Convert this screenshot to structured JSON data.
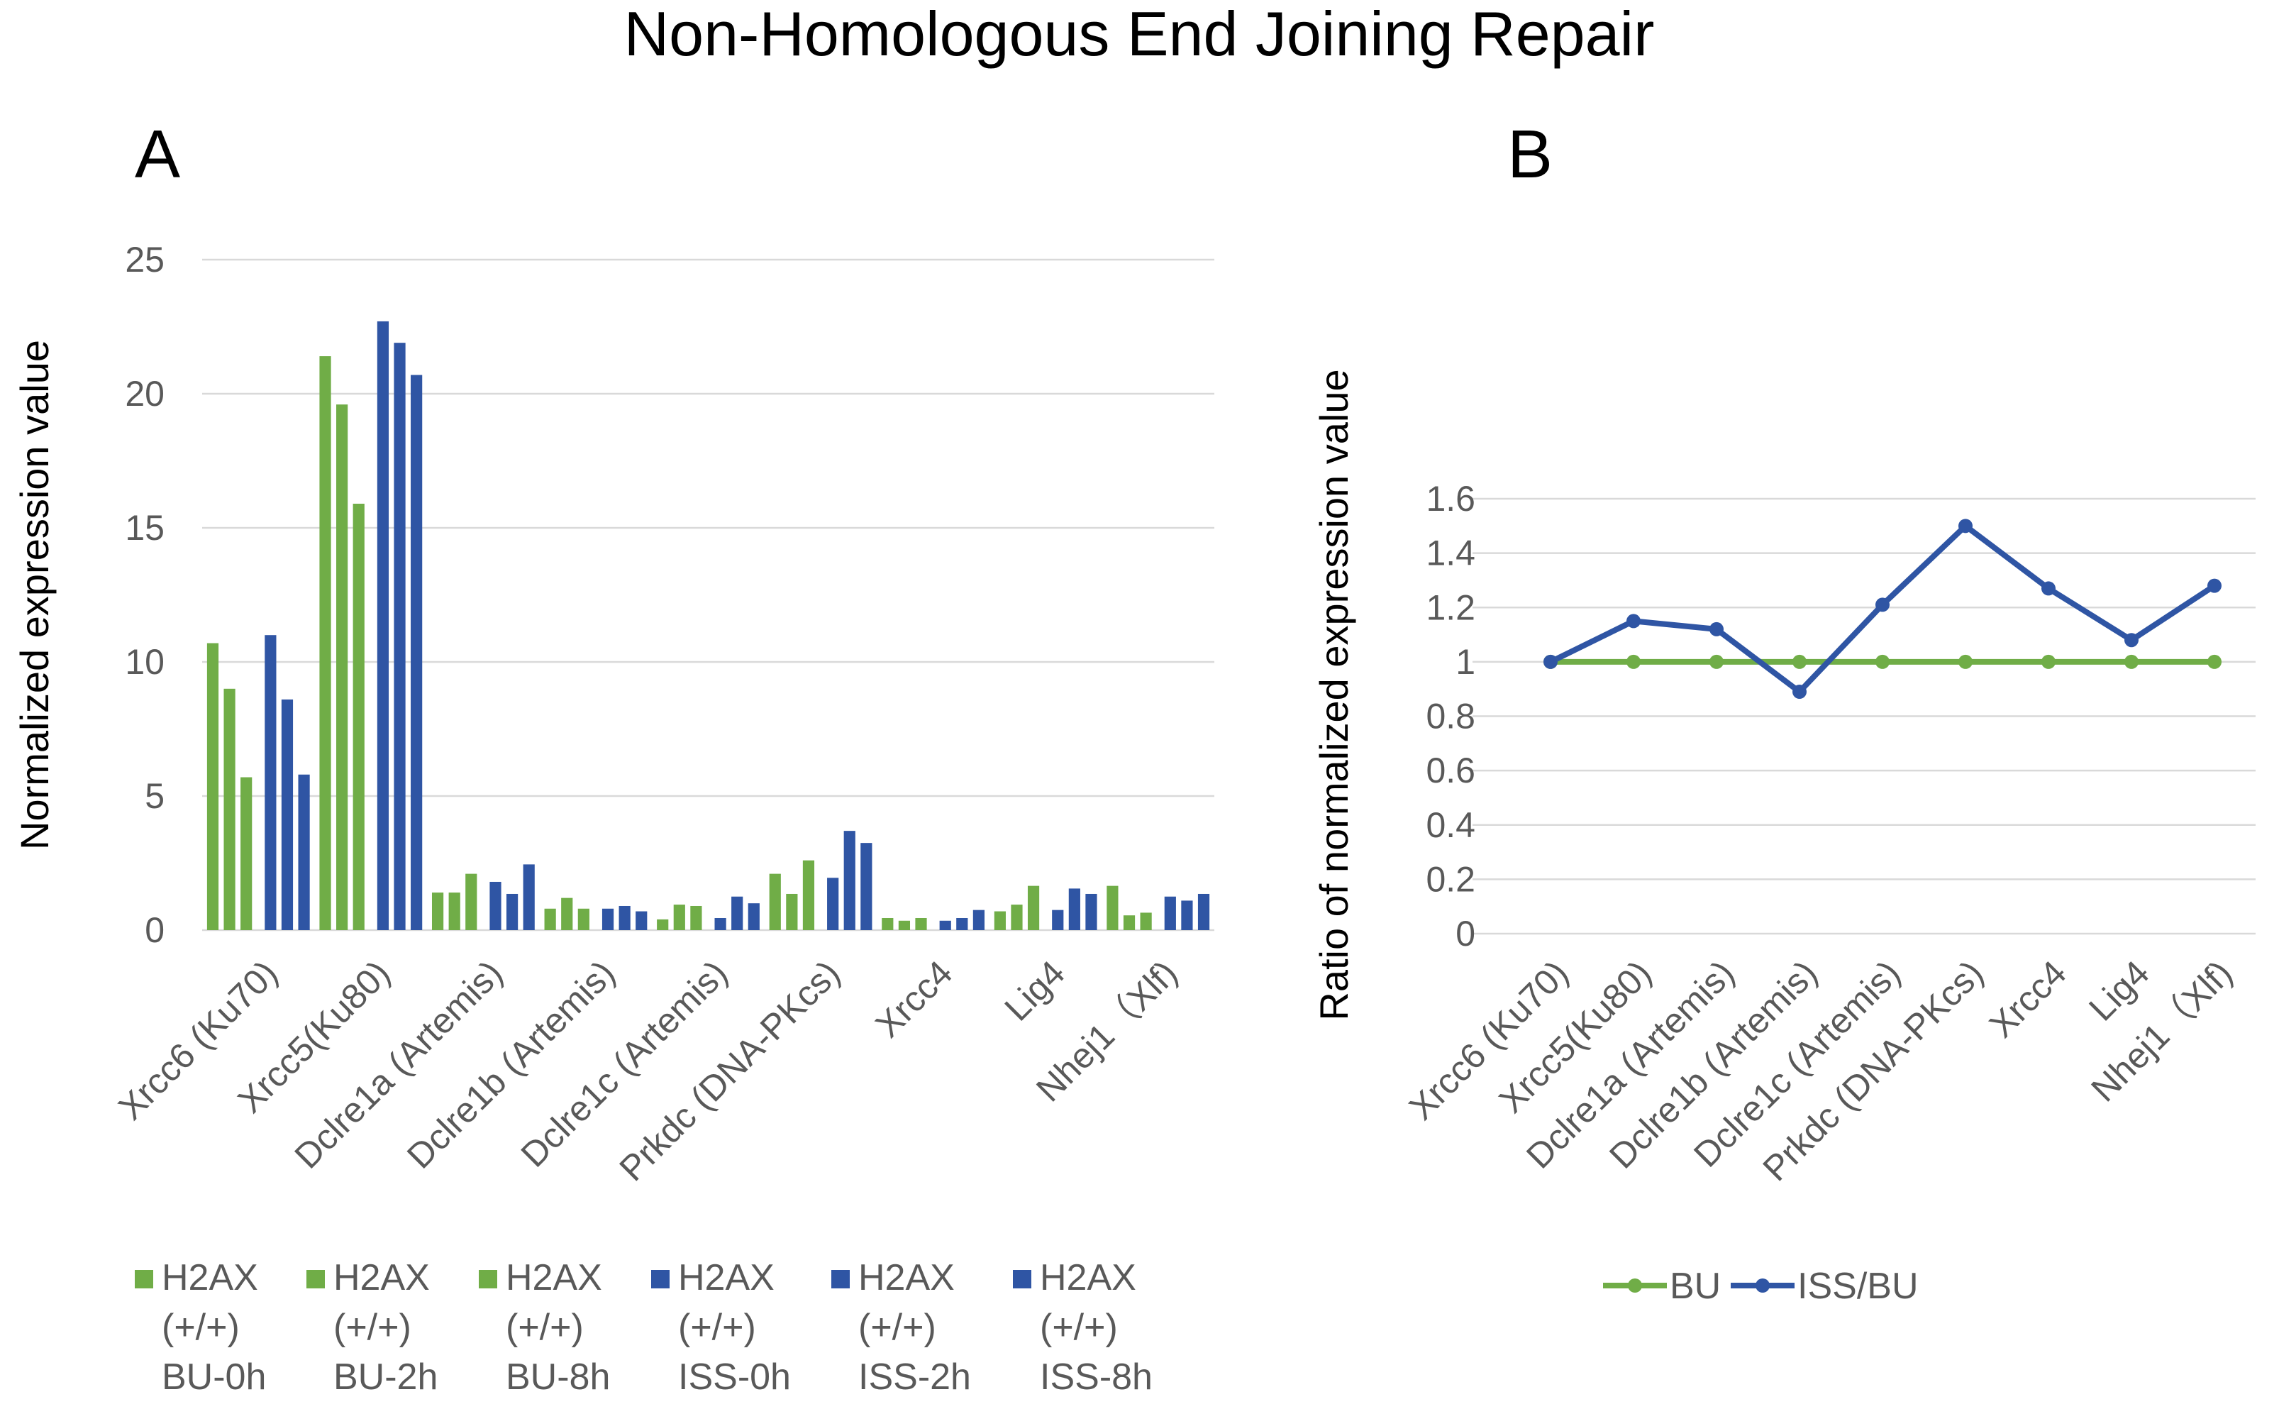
{
  "figure_title": "Non-Homologous End Joining Repair",
  "colors": {
    "green": "#70ad47",
    "blue": "#2f55a4",
    "grid": "#d9d9d9",
    "tick": "#595959"
  },
  "chart_data": [
    {
      "panel": "A",
      "type": "bar",
      "ylabel": "Normalized expression value",
      "ylim": [
        0,
        25
      ],
      "yticks": [
        0,
        5,
        10,
        15,
        20,
        25
      ],
      "grid": true,
      "legend_position": "bottom",
      "categories": [
        "Xrcc6 (Ku70)",
        "Xrcc5(Ku80)",
        "Dclre1a (Artemis)",
        "Dclre1b (Artemis)",
        "Dclre1c (Artemis)",
        "Prkdc (DNA-PKcs)",
        "Xrcc4",
        "Lig4",
        "Nhej1（Xlf)"
      ],
      "series": [
        {
          "name": "H2AX (+/+) BU-0h",
          "legend_lines": [
            "H2AX",
            "(+/+)",
            "BU-0h"
          ],
          "color": "#70ad47",
          "values": [
            10.7,
            21.4,
            1.4,
            0.8,
            0.4,
            2.1,
            0.45,
            0.7,
            1.65
          ]
        },
        {
          "name": "H2AX (+/+) BU-2h",
          "legend_lines": [
            "H2AX",
            "(+/+)",
            "BU-2h"
          ],
          "color": "#70ad47",
          "values": [
            9.0,
            19.6,
            1.4,
            1.2,
            0.95,
            1.35,
            0.35,
            0.95,
            0.55
          ]
        },
        {
          "name": "H2AX (+/+) BU-8h",
          "legend_lines": [
            "H2AX",
            "(+/+)",
            "BU-8h"
          ],
          "color": "#70ad47",
          "values": [
            5.7,
            15.9,
            2.1,
            0.8,
            0.9,
            2.6,
            0.45,
            1.65,
            0.65
          ]
        },
        {
          "name": "H2AX (+/+) ISS-0h",
          "legend_lines": [
            "H2AX",
            "(+/+)",
            "ISS-0h"
          ],
          "color": "#2f55a4",
          "values": [
            11.0,
            22.7,
            1.8,
            0.8,
            0.45,
            1.95,
            0.35,
            0.75,
            1.25
          ]
        },
        {
          "name": "H2AX (+/+) ISS-2h",
          "legend_lines": [
            "H2AX",
            "(+/+)",
            "ISS-2h"
          ],
          "color": "#2f55a4",
          "values": [
            8.6,
            21.9,
            1.35,
            0.9,
            1.25,
            3.7,
            0.45,
            1.55,
            1.1
          ]
        },
        {
          "name": "H2AX (+/+) ISS-8h",
          "legend_lines": [
            "H2AX",
            "(+/+)",
            "ISS-8h"
          ],
          "color": "#2f55a4",
          "values": [
            5.8,
            20.7,
            2.45,
            0.7,
            1.0,
            3.25,
            0.75,
            1.35,
            1.35
          ]
        }
      ]
    },
    {
      "panel": "B",
      "type": "line",
      "ylabel": "Ratio of normalized expression value",
      "ylim": [
        0,
        1.6
      ],
      "yticks": [
        "0",
        "0.2",
        "0.4",
        "0.6",
        "0.8",
        "1",
        "1.2",
        "1.4",
        "1.6"
      ],
      "grid": true,
      "legend_position": "bottom",
      "categories": [
        "Xrcc6 (Ku70)",
        "Xrcc5(Ku80)",
        "Dclre1a (Artemis)",
        "Dclre1b (Artemis)",
        "Dclre1c (Artemis)",
        "Prkdc (DNA-PKcs)",
        "Xrcc4",
        "Lig4",
        "Nhej1（Xlf)"
      ],
      "series": [
        {
          "name": "BU",
          "color": "#70ad47",
          "values": [
            1,
            1,
            1,
            1,
            1,
            1,
            1,
            1,
            1
          ]
        },
        {
          "name": "ISS/BU",
          "color": "#2f55a4",
          "values": [
            1.0,
            1.15,
            1.12,
            0.89,
            1.21,
            1.5,
            1.27,
            1.08,
            1.28
          ]
        }
      ]
    }
  ]
}
